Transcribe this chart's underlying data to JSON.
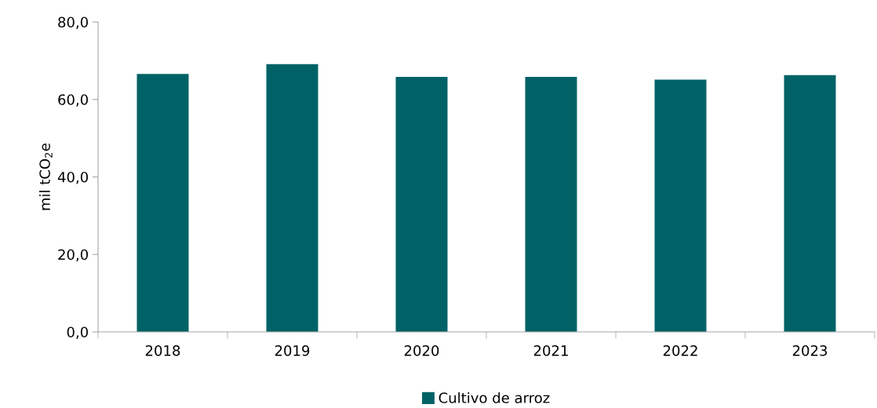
{
  "chart_data": {
    "type": "bar",
    "ylabel": "mil tCO$_{2}$e",
    "categories": [
      "2018",
      "2019",
      "2020",
      "2021",
      "2022",
      "2023"
    ],
    "series": [
      {
        "name": "Cultivo de arroz",
        "color": "#006266",
        "values": [
          66.6,
          69.1,
          65.8,
          65.8,
          65.1,
          66.3
        ]
      }
    ],
    "ylim": [
      0,
      80
    ],
    "yticks": [
      {
        "value": 0,
        "label": "0,0"
      },
      {
        "value": 20,
        "label": "20,0"
      },
      {
        "value": 40,
        "label": "40,0"
      },
      {
        "value": 60,
        "label": "60,0"
      },
      {
        "value": 80,
        "label": "80,0"
      }
    ],
    "grid": false,
    "legend": "bottom"
  }
}
